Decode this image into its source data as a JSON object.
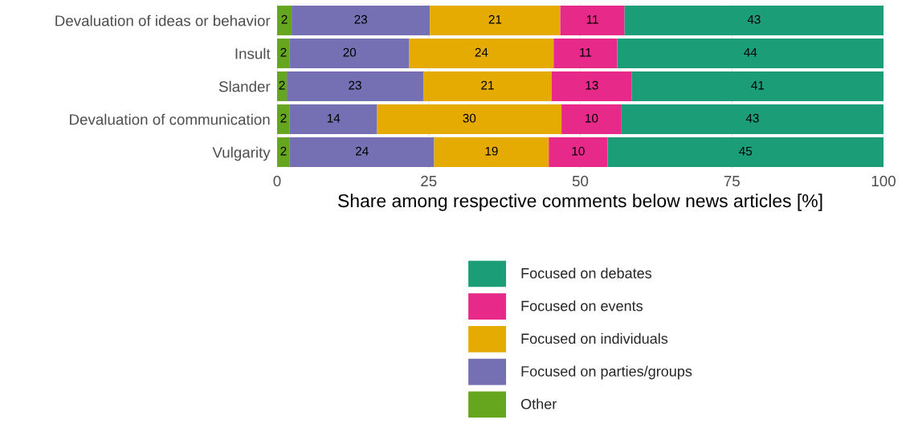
{
  "chart_data": {
    "type": "bar",
    "orientation": "horizontal",
    "stacked": true,
    "categories": [
      "Devaluation of ideas or behavior",
      "Insult",
      "Slander",
      "Devaluation of communication",
      "Vulgarity"
    ],
    "series": [
      {
        "name": "Other",
        "color": "#66a61e",
        "values": [
          2.4,
          2.1,
          1.6,
          2.1,
          2.1
        ],
        "value_labels": [
          "2",
          "2",
          "2",
          "2",
          "2"
        ]
      },
      {
        "name": "Focused on parties/groups",
        "color": "#7570b3",
        "values": [
          22.8,
          19.7,
          22.5,
          14.4,
          23.8
        ],
        "value_labels": [
          "23",
          "20",
          "23",
          "14",
          "24"
        ]
      },
      {
        "name": "Focused on individuals",
        "color": "#e6ab02",
        "values": [
          21.5,
          23.8,
          21.2,
          30.4,
          18.9
        ],
        "value_labels": [
          "21",
          "24",
          "21",
          "30",
          "19"
        ]
      },
      {
        "name": "Focused on events",
        "color": "#e7298a",
        "values": [
          10.6,
          10.5,
          13.2,
          9.9,
          9.7
        ],
        "value_labels": [
          "11",
          "11",
          "13",
          "10",
          "10"
        ]
      },
      {
        "name": "Focused on debates",
        "color": "#1b9e77",
        "values": [
          42.7,
          43.9,
          41.5,
          43.2,
          45.5
        ],
        "value_labels": [
          "43",
          "44",
          "41",
          "43",
          "45"
        ]
      }
    ],
    "xlabel": "Share among respective comments below news articles [%]",
    "xlim": [
      0,
      100
    ],
    "xticks": [
      0,
      25,
      50,
      75,
      100
    ],
    "grid": true,
    "legend": "bottom"
  }
}
